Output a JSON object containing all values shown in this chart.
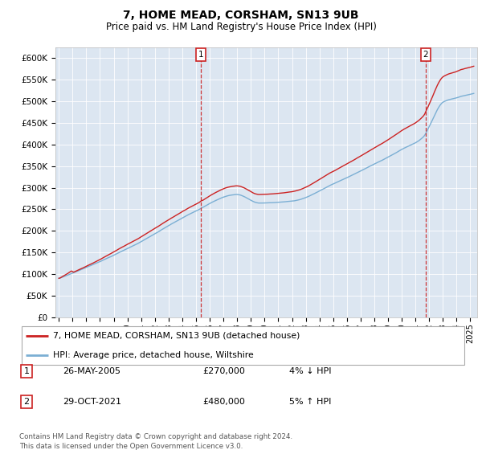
{
  "title": "7, HOME MEAD, CORSHAM, SN13 9UB",
  "subtitle": "Price paid vs. HM Land Registry's House Price Index (HPI)",
  "ylim": [
    0,
    625000
  ],
  "yticks": [
    0,
    50000,
    100000,
    150000,
    200000,
    250000,
    300000,
    350000,
    400000,
    450000,
    500000,
    550000,
    600000
  ],
  "ytick_labels": [
    "£0",
    "£50K",
    "£100K",
    "£150K",
    "£200K",
    "£250K",
    "£300K",
    "£350K",
    "£400K",
    "£450K",
    "£500K",
    "£550K",
    "£600K"
  ],
  "plot_bg_color": "#dce6f1",
  "hpi_color": "#7bafd4",
  "price_color": "#cc2222",
  "legend_line1": "7, HOME MEAD, CORSHAM, SN13 9UB (detached house)",
  "legend_line2": "HPI: Average price, detached house, Wiltshire",
  "table_row1": [
    "1",
    "26-MAY-2005",
    "£270,000",
    "4% ↓ HPI"
  ],
  "table_row2": [
    "2",
    "29-OCT-2021",
    "£480,000",
    "5% ↑ HPI"
  ],
  "footnote": "Contains HM Land Registry data © Crown copyright and database right 2024.\nThis data is licensed under the Open Government Licence v3.0."
}
